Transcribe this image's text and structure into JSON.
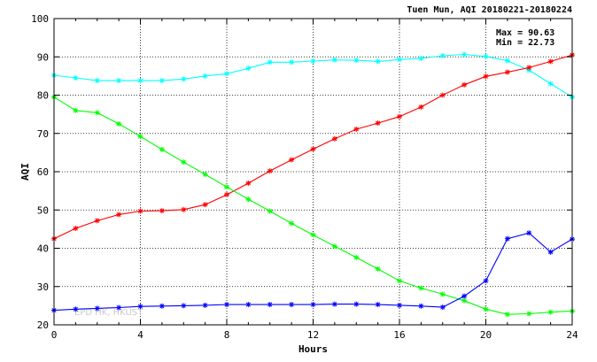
{
  "chart_data": {
    "type": "line",
    "title": "Tuen Mun, AQI 20180221-20180224",
    "xlabel": "Hours",
    "ylabel": "AQI",
    "xlim": [
      0,
      24
    ],
    "ylim": [
      20,
      100
    ],
    "xticks": [
      0,
      4,
      8,
      12,
      16,
      20,
      24
    ],
    "yticks": [
      20,
      30,
      40,
      50,
      60,
      70,
      80,
      90,
      100
    ],
    "grid": true,
    "x": [
      0,
      1,
      2,
      3,
      4,
      5,
      6,
      7,
      8,
      9,
      10,
      11,
      12,
      13,
      14,
      15,
      16,
      17,
      18,
      19,
      20,
      21,
      22,
      23,
      24
    ],
    "stats": {
      "max_label": "Max = 90.63",
      "min_label": "Min = 22.73"
    },
    "watermark": "EPD HK, HKUST",
    "series": [
      {
        "color": "#00ffff",
        "values": [
          85.2,
          84.5,
          83.8,
          83.8,
          83.8,
          83.8,
          84.2,
          85.0,
          85.6,
          87.0,
          88.6,
          88.6,
          88.9,
          89.2,
          89.1,
          88.8,
          89.3,
          89.6,
          90.3,
          90.63,
          90.1,
          89.0,
          86.5,
          83.0,
          79.5
        ]
      },
      {
        "color": "#ff0000",
        "values": [
          42.5,
          45.2,
          47.2,
          48.8,
          49.7,
          49.8,
          50.1,
          51.4,
          54.0,
          57.0,
          60.2,
          63.1,
          65.9,
          68.6,
          71.1,
          72.7,
          74.4,
          76.9,
          80.0,
          82.7,
          84.9,
          86.0,
          87.2,
          88.8,
          90.5
        ]
      },
      {
        "color": "#00ff00",
        "values": [
          79.5,
          76.0,
          75.4,
          72.5,
          69.2,
          65.8,
          62.5,
          59.3,
          56.0,
          52.8,
          49.7,
          46.5,
          43.5,
          40.5,
          37.6,
          34.6,
          31.5,
          29.6,
          28.0,
          26.3,
          24.1,
          22.73,
          22.9,
          23.3,
          23.6
        ]
      },
      {
        "color": "#0000ff",
        "values": [
          23.8,
          24.1,
          24.3,
          24.5,
          24.8,
          24.9,
          25.0,
          25.1,
          25.3,
          25.3,
          25.3,
          25.3,
          25.3,
          25.4,
          25.4,
          25.3,
          25.1,
          24.9,
          24.6,
          27.5,
          31.5,
          42.5,
          44.0,
          39.0,
          42.4
        ]
      }
    ]
  }
}
